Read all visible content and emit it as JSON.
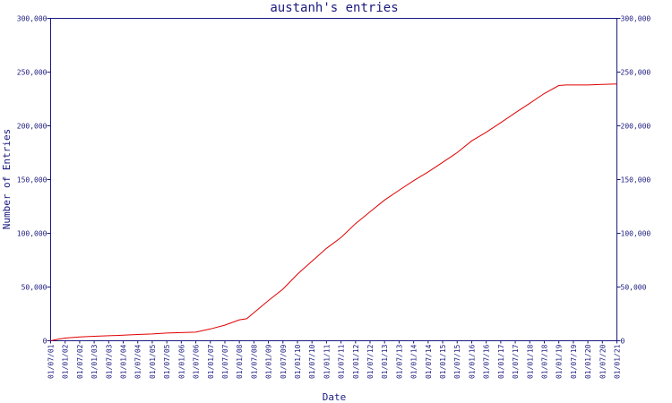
{
  "chart_data": {
    "type": "line",
    "title": "austanh's entries",
    "xlabel": "Date",
    "ylabel": "Number of Entries",
    "x_ticks": [
      "01/07/01",
      "01/01/02",
      "01/07/02",
      "01/01/03",
      "01/07/03",
      "01/01/04",
      "01/07/04",
      "01/01/05",
      "01/07/05",
      "01/01/06",
      "01/07/06",
      "01/01/07",
      "01/07/07",
      "01/01/08",
      "01/07/08",
      "01/01/09",
      "01/07/09",
      "01/01/10",
      "01/07/10",
      "01/01/11",
      "01/07/11",
      "01/01/12",
      "01/07/12",
      "01/01/13",
      "01/07/13",
      "01/01/14",
      "01/07/14",
      "01/01/15",
      "01/07/15",
      "01/01/16",
      "01/07/16",
      "01/01/17",
      "01/07/17",
      "01/01/18",
      "01/07/18",
      "01/01/19",
      "01/07/19",
      "01/01/20",
      "01/07/20",
      "01/01/21"
    ],
    "y_ticks": [
      "0",
      "50,000",
      "100,000",
      "150,000",
      "200,000",
      "250,000",
      "300,000"
    ],
    "y_tick_values": [
      0,
      50000,
      100000,
      150000,
      200000,
      250000,
      300000
    ],
    "ylim": [
      0,
      300000
    ],
    "xlim": [
      "2001-07-01",
      "2021-01-01"
    ],
    "grid": false,
    "legend": "none",
    "line_color": "#e00000",
    "axis_color": "#1a1a80",
    "series": [
      {
        "x": [
          "2001-07-01",
          "2001-10-01",
          "2002-01-01",
          "2002-04-01",
          "2002-07-01",
          "2003-01-01",
          "2003-07-01",
          "2004-01-01",
          "2004-07-01",
          "2005-01-01",
          "2005-07-01",
          "2006-01-01",
          "2006-07-01",
          "2007-01-01",
          "2007-07-01",
          "2008-01-01",
          "2008-04-01",
          "2008-07-01",
          "2009-01-01",
          "2009-07-01",
          "2010-01-01",
          "2010-07-01",
          "2011-01-01",
          "2011-07-01",
          "2012-01-01",
          "2012-07-01",
          "2013-01-01",
          "2013-07-01",
          "2014-01-01",
          "2014-07-01",
          "2015-01-01",
          "2015-07-01",
          "2016-01-01",
          "2016-07-01",
          "2017-01-01",
          "2017-07-01",
          "2018-01-01",
          "2018-07-01",
          "2019-01-01",
          "2019-04-01",
          "2019-07-01",
          "2020-01-01",
          "2020-07-01",
          "2021-01-01"
        ],
        "values": [
          0,
          1500,
          2500,
          3000,
          3500,
          4200,
          4700,
          5200,
          5800,
          6300,
          7200,
          7600,
          8000,
          11000,
          14500,
          19500,
          20500,
          26000,
          37500,
          48000,
          62000,
          74000,
          86000,
          96000,
          109000,
          120000,
          131000,
          140000,
          149000,
          157000,
          166000,
          175000,
          186000,
          194000,
          203000,
          212000,
          221000,
          230000,
          237500,
          238000,
          238000,
          238000,
          238500,
          239000
        ]
      }
    ]
  }
}
